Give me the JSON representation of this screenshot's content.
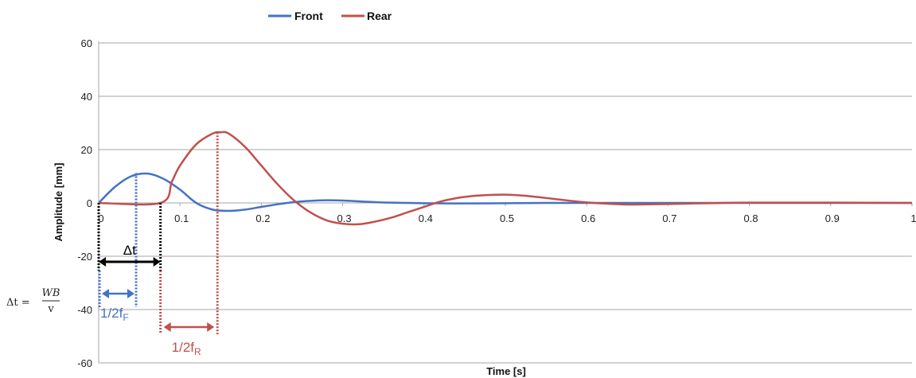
{
  "chart_data": {
    "type": "line",
    "xlabel": "Time [s]",
    "ylabel": "Amplitude [mm]",
    "xlim": [
      0,
      1
    ],
    "ylim": [
      -60,
      60
    ],
    "x_ticks": [
      "0",
      "0.1",
      "0.2",
      "0.3",
      "0.4",
      "0.5",
      "0.6",
      "0.7",
      "0.8",
      "0.9",
      "1"
    ],
    "y_ticks": [
      "60",
      "40",
      "20",
      "0",
      "-20",
      "-40",
      "-60"
    ],
    "x_tick_values": [
      0,
      0.1,
      0.2,
      0.3,
      0.4,
      0.5,
      0.6,
      0.7,
      0.8,
      0.9,
      1
    ],
    "y_tick_values": [
      60,
      40,
      20,
      0,
      -20,
      -40,
      -60
    ],
    "grid": "horizontal",
    "legend_position": "top-center",
    "series": [
      {
        "name": "Front",
        "color": "#4472c4",
        "x": [
          0,
          0.02,
          0.04,
          0.06,
          0.08,
          0.1,
          0.12,
          0.14,
          0.16,
          0.18,
          0.2,
          0.22,
          0.24,
          0.26,
          0.28,
          0.3,
          0.32,
          0.34,
          0.36,
          0.4,
          0.45,
          0.5,
          0.55,
          0.6,
          0.7,
          0.8,
          0.9,
          1.0
        ],
        "y": [
          0,
          6,
          10,
          11,
          9,
          5,
          0,
          -2.5,
          -3,
          -2.5,
          -1.5,
          -0.5,
          0.3,
          0.8,
          1.0,
          0.9,
          0.6,
          0.3,
          0.1,
          -0.1,
          -0.2,
          -0.1,
          0,
          0,
          0,
          0,
          0,
          0
        ]
      },
      {
        "name": "Rear",
        "color": "#c0504d",
        "x": [
          0,
          0.076,
          0.09,
          0.1,
          0.12,
          0.14,
          0.15,
          0.16,
          0.18,
          0.2,
          0.22,
          0.24,
          0.26,
          0.28,
          0.3,
          0.32,
          0.34,
          0.36,
          0.38,
          0.4,
          0.42,
          0.44,
          0.46,
          0.48,
          0.5,
          0.52,
          0.54,
          0.56,
          0.58,
          0.6,
          0.62,
          0.64,
          0.66,
          0.7,
          0.75,
          0.8,
          0.9,
          1.0
        ],
        "y": [
          0,
          0,
          8,
          14,
          22,
          26,
          26.5,
          26,
          21,
          14,
          7,
          1,
          -3.5,
          -6.5,
          -7.8,
          -8,
          -7,
          -5.5,
          -3.5,
          -1.5,
          0.5,
          1.8,
          2.6,
          3.0,
          3.1,
          2.8,
          2.2,
          1.5,
          0.8,
          0.2,
          -0.2,
          -0.5,
          -0.6,
          -0.4,
          -0.1,
          0.1,
          0.1,
          0
        ]
      }
    ],
    "annotations": {
      "delta_t_label": "Δt",
      "delta_t_range": [
        0,
        0.076
      ],
      "front_half_period_label": "1/2f",
      "front_subscript": "F",
      "front_half_period_range": [
        0,
        0.046
      ],
      "rear_half_period_label": "1/2f",
      "rear_subscript": "R",
      "rear_half_period_range": [
        0.076,
        0.146
      ],
      "formula_lhs": "Δt =",
      "formula_numerator": "WB",
      "formula_denominator": "v"
    }
  }
}
